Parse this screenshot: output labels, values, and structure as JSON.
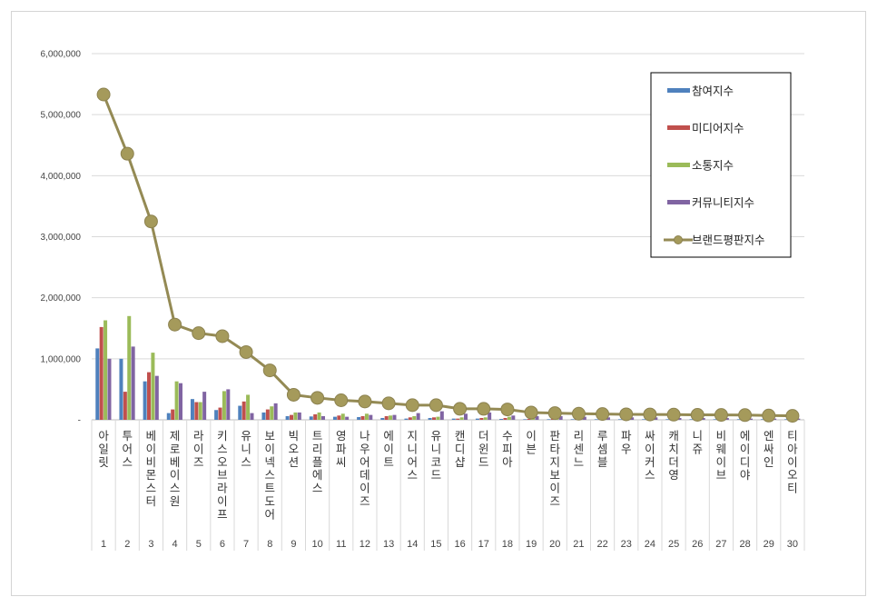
{
  "chart_data": {
    "type": "bar",
    "categories": [
      "아일릿",
      "투어스",
      "베이비몬스터",
      "제로베이스원",
      "라이즈",
      "키스오브라이프",
      "유니스",
      "보이넥스트도어",
      "빅오션",
      "트리플에스",
      "영파씨",
      "나우어데이즈",
      "에이트",
      "지니어스",
      "유니코드",
      "캔디샵",
      "더윈드",
      "수피아",
      "이븐",
      "판타지보이즈",
      "리센느",
      "루셈블",
      "파우",
      "싸이커스",
      "캐치더영",
      "니쥬",
      "비웨이브",
      "에이디야",
      "엔싸인",
      "티아이오티"
    ],
    "ranks": [
      "1",
      "2",
      "3",
      "4",
      "5",
      "6",
      "7",
      "8",
      "9",
      "10",
      "11",
      "12",
      "13",
      "14",
      "15",
      "16",
      "17",
      "18",
      "19",
      "20",
      "21",
      "22",
      "23",
      "24",
      "25",
      "26",
      "27",
      "28",
      "29",
      "30"
    ],
    "ylim": [
      0,
      6000000
    ],
    "yticks": [
      0,
      1000000,
      2000000,
      3000000,
      4000000,
      5000000,
      6000000
    ],
    "ytick_labels": [
      "-",
      "1,000,000",
      "2,000,000",
      "3,000,000",
      "4,000,000",
      "5,000,000",
      "6,000,000"
    ],
    "grid": true,
    "legend_position": "top-right",
    "series": [
      {
        "name": "참여지수",
        "type": "bar",
        "color": "#4f81bd",
        "values": [
          1170000,
          1000000,
          630000,
          110000,
          340000,
          160000,
          230000,
          120000,
          60000,
          55000,
          50000,
          45000,
          30000,
          20000,
          30000,
          20000,
          20000,
          15000,
          10000,
          10000,
          10000,
          10000,
          10000,
          10000,
          10000,
          10000,
          10000,
          10000,
          10000,
          10000
        ]
      },
      {
        "name": "미디어지수",
        "type": "bar",
        "color": "#c0504d",
        "values": [
          1520000,
          460000,
          780000,
          170000,
          290000,
          200000,
          300000,
          170000,
          80000,
          90000,
          70000,
          60000,
          60000,
          40000,
          40000,
          20000,
          30000,
          30000,
          15000,
          15000,
          15000,
          15000,
          15000,
          15000,
          15000,
          15000,
          15000,
          15000,
          15000,
          15000
        ]
      },
      {
        "name": "소통지수",
        "type": "bar",
        "color": "#9bbb59",
        "values": [
          1630000,
          1700000,
          1100000,
          630000,
          290000,
          470000,
          410000,
          220000,
          120000,
          120000,
          100000,
          100000,
          70000,
          60000,
          50000,
          40000,
          40000,
          50000,
          25000,
          25000,
          25000,
          25000,
          25000,
          25000,
          25000,
          25000,
          25000,
          25000,
          25000,
          25000
        ]
      },
      {
        "name": "커뮤니티지수",
        "type": "bar",
        "color": "#8064a2",
        "values": [
          1000000,
          1200000,
          720000,
          600000,
          460000,
          500000,
          110000,
          270000,
          120000,
          60000,
          50000,
          80000,
          80000,
          110000,
          140000,
          100000,
          120000,
          70000,
          60000,
          60000,
          50000,
          40000,
          40000,
          40000,
          30000,
          30000,
          30000,
          20000,
          20000,
          20000
        ]
      },
      {
        "name": "브랜드평판지수",
        "type": "line",
        "color": "#948a54",
        "values": [
          5330000,
          4360000,
          3250000,
          1560000,
          1420000,
          1370000,
          1110000,
          810000,
          410000,
          360000,
          320000,
          300000,
          270000,
          240000,
          240000,
          180000,
          180000,
          170000,
          120000,
          110000,
          100000,
          95000,
          90000,
          88000,
          85000,
          82000,
          80000,
          78000,
          70000,
          65000
        ]
      }
    ]
  }
}
